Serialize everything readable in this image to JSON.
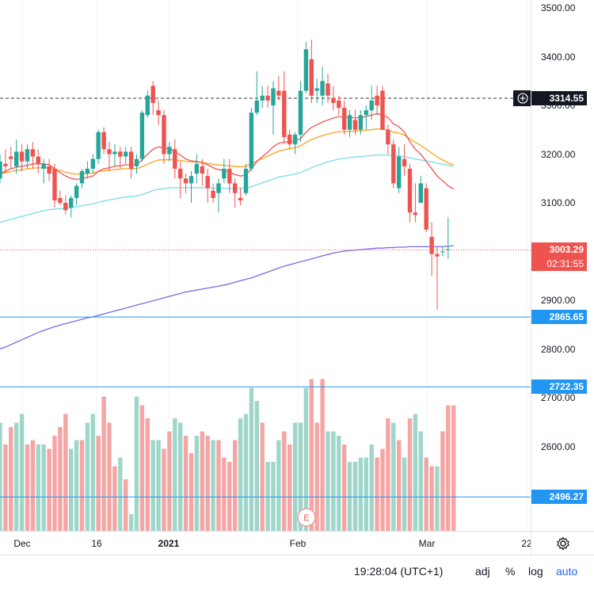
{
  "chart_data": {
    "type": "candlestick",
    "symbol_timeframe": "daily",
    "y_axis": {
      "min": 2400,
      "max": 3500,
      "ticks": [
        2600,
        2700,
        2800,
        2900,
        3000,
        3100,
        3200,
        3300,
        3400,
        3500
      ]
    },
    "y_tick_labels": [
      "2600.00",
      "2700.00",
      "2800.00",
      "2900.00",
      "3000.00",
      "3100.00",
      "3200.00",
      "3300.00",
      "3400.00",
      "3500.00"
    ],
    "x_labels": [
      "Dec",
      "16",
      "2021",
      "Feb",
      "Mar",
      "22"
    ],
    "candles": [
      [
        3150,
        3200,
        3140,
        3185
      ],
      [
        3180,
        3210,
        3160,
        3175
      ],
      [
        3195,
        3215,
        3170,
        3190
      ],
      [
        3175,
        3230,
        3160,
        3205
      ],
      [
        3205,
        3220,
        3165,
        3185
      ],
      [
        3185,
        3220,
        3170,
        3210
      ],
      [
        3210,
        3225,
        3170,
        3195
      ],
      [
        3195,
        3210,
        3160,
        3180
      ],
      [
        3170,
        3190,
        3140,
        3180
      ],
      [
        3175,
        3190,
        3145,
        3160
      ],
      [
        3170,
        3180,
        3090,
        3105
      ],
      [
        3110,
        3125,
        3095,
        3100
      ],
      [
        3100,
        3115,
        3075,
        3085
      ],
      [
        3090,
        3115,
        3070,
        3110
      ],
      [
        3110,
        3140,
        3095,
        3135
      ],
      [
        3140,
        3170,
        3130,
        3165
      ],
      [
        3160,
        3185,
        3150,
        3170
      ],
      [
        3170,
        3200,
        3160,
        3190
      ],
      [
        3190,
        3250,
        3180,
        3245
      ],
      [
        3245,
        3255,
        3200,
        3210
      ],
      [
        3210,
        3225,
        3165,
        3200
      ],
      [
        3200,
        3220,
        3175,
        3205
      ],
      [
        3205,
        3215,
        3170,
        3195
      ],
      [
        3195,
        3215,
        3180,
        3205
      ],
      [
        3205,
        3215,
        3150,
        3170
      ],
      [
        3175,
        3200,
        3160,
        3190
      ],
      [
        3190,
        3290,
        3185,
        3285
      ],
      [
        3280,
        3330,
        3275,
        3320
      ],
      [
        3340,
        3350,
        3280,
        3305
      ],
      [
        3290,
        3310,
        3260,
        3280
      ],
      [
        3280,
        3290,
        3180,
        3200
      ],
      [
        3200,
        3225,
        3185,
        3215
      ],
      [
        3210,
        3230,
        3150,
        3170
      ],
      [
        3170,
        3185,
        3110,
        3150
      ],
      [
        3150,
        3160,
        3120,
        3140
      ],
      [
        3140,
        3165,
        3100,
        3155
      ],
      [
        3160,
        3200,
        3140,
        3180
      ],
      [
        3175,
        3190,
        3135,
        3160
      ],
      [
        3155,
        3170,
        3100,
        3130
      ],
      [
        3125,
        3140,
        3100,
        3110
      ],
      [
        3120,
        3150,
        3080,
        3140
      ],
      [
        3150,
        3190,
        3140,
        3170
      ],
      [
        3170,
        3190,
        3120,
        3140
      ],
      [
        3140,
        3150,
        3090,
        3120
      ],
      [
        3110,
        3130,
        3095,
        3105
      ],
      [
        3120,
        3180,
        3115,
        3170
      ],
      [
        3170,
        3295,
        3165,
        3285
      ],
      [
        3285,
        3370,
        3280,
        3310
      ],
      [
        3310,
        3340,
        3295,
        3320
      ],
      [
        3320,
        3340,
        3295,
        3310
      ],
      [
        3300,
        3350,
        3240,
        3335
      ],
      [
        3330,
        3360,
        3310,
        3320
      ],
      [
        3330,
        3370,
        3220,
        3235
      ],
      [
        3240,
        3250,
        3210,
        3220
      ],
      [
        3220,
        3245,
        3200,
        3240
      ],
      [
        3240,
        3350,
        3225,
        3330
      ],
      [
        3330,
        3430,
        3325,
        3415
      ],
      [
        3395,
        3435,
        3305,
        3320
      ],
      [
        3330,
        3355,
        3305,
        3335
      ],
      [
        3320,
        3380,
        3300,
        3350
      ],
      [
        3345,
        3365,
        3305,
        3320
      ],
      [
        3315,
        3340,
        3290,
        3305
      ],
      [
        3310,
        3320,
        3280,
        3295
      ],
      [
        3295,
        3310,
        3240,
        3250
      ],
      [
        3250,
        3290,
        3235,
        3280
      ],
      [
        3270,
        3290,
        3240,
        3250
      ],
      [
        3250,
        3290,
        3240,
        3280
      ],
      [
        3280,
        3300,
        3250,
        3290
      ],
      [
        3290,
        3340,
        3270,
        3310
      ],
      [
        3320,
        3340,
        3280,
        3300
      ],
      [
        3330,
        3340,
        3250,
        3250
      ],
      [
        3250,
        3260,
        3200,
        3220
      ],
      [
        3220,
        3230,
        3130,
        3140
      ],
      [
        3130,
        3215,
        3120,
        3195
      ],
      [
        3190,
        3220,
        3155,
        3175
      ],
      [
        3170,
        3180,
        3060,
        3080
      ],
      [
        3080,
        3140,
        3060,
        3075
      ],
      [
        3100,
        3155,
        3100,
        3140
      ],
      [
        3130,
        3140,
        3040,
        3045
      ],
      [
        3030,
        3060,
        2950,
        2995
      ],
      [
        2995,
        3010,
        2880,
        2990
      ],
      [
        3000,
        3010,
        2990,
        3000
      ],
      [
        3005,
        3070,
        2985,
        3005
      ]
    ],
    "volumes": [
      560,
      510,
      550,
      560,
      580,
      510,
      520,
      510,
      510,
      500,
      530,
      550,
      580,
      500,
      520,
      520,
      560,
      580,
      530,
      620,
      560,
      460,
      480,
      430,
      350,
      620,
      600,
      570,
      520,
      520,
      500,
      540,
      570,
      560,
      530,
      490,
      530,
      540,
      530,
      520,
      520,
      480,
      470,
      520,
      570,
      580,
      640,
      610,
      560,
      470,
      470,
      520,
      540,
      510,
      560,
      560,
      640,
      660,
      560,
      660,
      540,
      540,
      530,
      510,
      470,
      470,
      480,
      480,
      510,
      480,
      500,
      570,
      560,
      520,
      480,
      570,
      580,
      540,
      480,
      460,
      460,
      540,
      600,
      600
    ],
    "volume_colors": [
      "g",
      "r",
      "r",
      "g",
      "g",
      "r",
      "r",
      "g",
      "g",
      "r",
      "r",
      "r",
      "r",
      "g",
      "g",
      "r",
      "g",
      "g",
      "r",
      "r",
      "r",
      "r",
      "g",
      "r",
      "g",
      "g",
      "r",
      "r",
      "g",
      "g",
      "r",
      "r",
      "g",
      "g",
      "r",
      "r",
      "g",
      "r",
      "r",
      "g",
      "r",
      "r",
      "r",
      "r",
      "g",
      "g",
      "g",
      "g",
      "r",
      "g",
      "g",
      "g",
      "r",
      "r",
      "g",
      "g",
      "g",
      "r",
      "r",
      "r",
      "g",
      "g",
      "g",
      "r",
      "g",
      "g",
      "g",
      "g",
      "g",
      "r",
      "r",
      "r",
      "g",
      "r",
      "g",
      "r",
      "g",
      "g",
      "r",
      "r",
      "g",
      "r",
      "r",
      "r"
    ],
    "ema_red": [
      3160,
      3165,
      3170,
      3173,
      3175,
      3177,
      3180,
      3180,
      3180,
      3178,
      3170,
      3162,
      3155,
      3150,
      3148,
      3150,
      3152,
      3155,
      3165,
      3170,
      3172,
      3175,
      3176,
      3178,
      3178,
      3178,
      3188,
      3200,
      3210,
      3215,
      3212,
      3212,
      3205,
      3198,
      3190,
      3186,
      3185,
      3182,
      3178,
      3172,
      3168,
      3167,
      3163,
      3158,
      3155,
      3157,
      3170,
      3185,
      3195,
      3204,
      3215,
      3222,
      3225,
      3225,
      3227,
      3232,
      3245,
      3255,
      3260,
      3266,
      3270,
      3274,
      3277,
      3275,
      3276,
      3274,
      3275,
      3277,
      3280,
      3283,
      3280,
      3275,
      3262,
      3256,
      3245,
      3225,
      3210,
      3200,
      3185,
      3170,
      3155,
      3145,
      3135,
      3128
    ],
    "ema_orange": [
      3160,
      3162,
      3164,
      3166,
      3168,
      3170,
      3171,
      3172,
      3172,
      3172,
      3169,
      3166,
      3163,
      3160,
      3159,
      3159,
      3160,
      3161,
      3164,
      3166,
      3167,
      3168,
      3169,
      3170,
      3170,
      3170,
      3174,
      3179,
      3184,
      3188,
      3188,
      3189,
      3188,
      3187,
      3185,
      3184,
      3184,
      3183,
      3181,
      3179,
      3178,
      3177,
      3176,
      3175,
      3174,
      3175,
      3180,
      3186,
      3191,
      3196,
      3201,
      3206,
      3209,
      3211,
      3213,
      3217,
      3224,
      3230,
      3234,
      3238,
      3241,
      3244,
      3246,
      3246,
      3247,
      3247,
      3248,
      3249,
      3250,
      3252,
      3251,
      3250,
      3245,
      3243,
      3239,
      3231,
      3224,
      3218,
      3210,
      3202,
      3194,
      3188,
      3182,
      3178
    ],
    "sma_cyan": [
      3060,
      3063,
      3066,
      3069,
      3072,
      3075,
      3078,
      3081,
      3084,
      3086,
      3087,
      3088,
      3089,
      3090,
      3092,
      3094,
      3096,
      3098,
      3101,
      3104,
      3106,
      3108,
      3110,
      3112,
      3113,
      3114,
      3117,
      3121,
      3125,
      3128,
      3129,
      3131,
      3131,
      3131,
      3131,
      3131,
      3131,
      3131,
      3131,
      3130,
      3130,
      3130,
      3130,
      3130,
      3130,
      3130,
      3133,
      3137,
      3141,
      3145,
      3149,
      3153,
      3155,
      3157,
      3159,
      3162,
      3167,
      3172,
      3176,
      3180,
      3184,
      3187,
      3190,
      3191,
      3193,
      3194,
      3195,
      3196,
      3197,
      3198,
      3198,
      3198,
      3197,
      3196,
      3195,
      3192,
      3190,
      3188,
      3186,
      3184,
      3181,
      3179,
      3177,
      3175
    ],
    "sma_purple": [
      2800,
      2804,
      2809,
      2814,
      2819,
      2824,
      2829,
      2834,
      2838,
      2842,
      2846,
      2849,
      2852,
      2855,
      2858,
      2861,
      2864,
      2866,
      2869,
      2872,
      2875,
      2878,
      2881,
      2884,
      2887,
      2890,
      2893,
      2896,
      2899,
      2902,
      2905,
      2908,
      2911,
      2914,
      2917,
      2919,
      2921,
      2923,
      2925,
      2927,
      2929,
      2931,
      2934,
      2937,
      2940,
      2943,
      2946,
      2950,
      2954,
      2958,
      2962,
      2966,
      2970,
      2973,
      2976,
      2979,
      2982,
      2985,
      2988,
      2991,
      2994,
      2997,
      2999,
      3001,
      3002,
      3003,
      3004,
      3005,
      3006,
      3007,
      3007,
      3008,
      3008,
      3009,
      3009,
      3010,
      3010,
      3010,
      3010,
      3010,
      3010,
      3010,
      3011,
      3012
    ],
    "horizontal_lines": [
      {
        "price": 3314.55,
        "label": "3314.55",
        "style": "dashed",
        "color": "#333333"
      },
      {
        "price": 2865.65,
        "label": "2865.65",
        "style": "solid",
        "color": "#2196f3"
      },
      {
        "price": 2722.35,
        "label": "2722.35",
        "style": "solid",
        "color": "#2196f3"
      },
      {
        "price": 2496.27,
        "label": "2496.27",
        "style": "solid",
        "color": "#2196f3"
      }
    ],
    "last_price": {
      "price": 3003.29,
      "label": "3003.29",
      "countdown": "02:31:55",
      "color": "#ef5350"
    },
    "event_marker": "E"
  },
  "colors": {
    "up": "#26a69a",
    "down": "#ef5350",
    "vol_up": "#9fd6ca",
    "vol_down": "#f5a5a3",
    "ema_red": "#ef5350",
    "ema_orange": "#ffa726",
    "sma_cyan": "#80deea",
    "sma_purple": "#7b68ee",
    "level": "#2196f3",
    "accent": "#2962ff"
  },
  "bottom_bar": {
    "clock": "19:28:04 (UTC+1)",
    "adj": "adj",
    "percent": "%",
    "log": "log",
    "auto": "auto"
  },
  "icons": {
    "crosshair": "plus-circle-icon",
    "settings": "gear-icon"
  }
}
